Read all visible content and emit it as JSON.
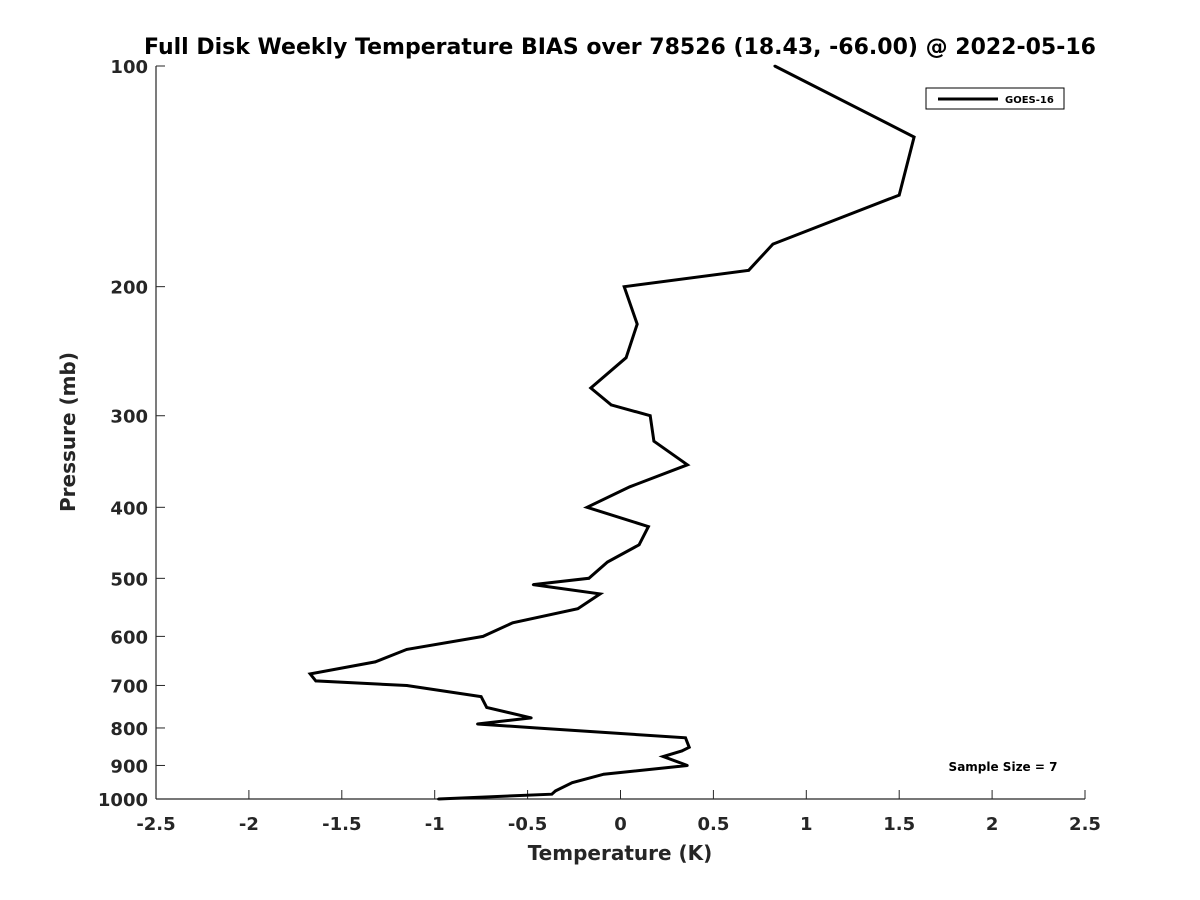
{
  "chart_data": {
    "type": "line",
    "title": "Full Disk Weekly Temperature BIAS over 78526 (18.43, -66.00) @ 2022-05-16",
    "xlabel": "Temperature (K)",
    "ylabel": "Pressure (mb)",
    "xlim": [
      -2.5,
      2.5
    ],
    "ylim": [
      100,
      1000
    ],
    "y_scale": "log",
    "y_reversed": true,
    "x_ticks": [
      -2.5,
      -2,
      -1.5,
      -1,
      -0.5,
      0,
      0.5,
      1,
      1.5,
      2,
      2.5
    ],
    "x_tick_labels": [
      "-2.5",
      "-2",
      "-1.5",
      "-1",
      "-0.5",
      "0",
      "0.5",
      "1",
      "1.5",
      "2",
      "2.5"
    ],
    "y_ticks": [
      100,
      200,
      300,
      400,
      500,
      600,
      700,
      800,
      900,
      1000
    ],
    "y_tick_labels": [
      "100",
      "200",
      "300",
      "400",
      "500",
      "600",
      "700",
      "800",
      "900",
      "1000"
    ],
    "grid": false,
    "legend_position": "top-right",
    "annotation": "Sample Size = 7",
    "series": [
      {
        "name": "GOES-16",
        "color": "#000000",
        "points": [
          {
            "x": 0.83,
            "y": 100
          },
          {
            "x": 1.58,
            "y": 125
          },
          {
            "x": 1.5,
            "y": 150
          },
          {
            "x": 0.82,
            "y": 175
          },
          {
            "x": 0.69,
            "y": 190
          },
          {
            "x": 0.02,
            "y": 200
          },
          {
            "x": 0.09,
            "y": 225
          },
          {
            "x": 0.03,
            "y": 250
          },
          {
            "x": -0.16,
            "y": 275
          },
          {
            "x": -0.05,
            "y": 290
          },
          {
            "x": 0.16,
            "y": 300
          },
          {
            "x": 0.18,
            "y": 325
          },
          {
            "x": 0.36,
            "y": 350
          },
          {
            "x": 0.05,
            "y": 375
          },
          {
            "x": -0.18,
            "y": 400
          },
          {
            "x": 0.15,
            "y": 425
          },
          {
            "x": 0.1,
            "y": 450
          },
          {
            "x": -0.07,
            "y": 475
          },
          {
            "x": -0.17,
            "y": 500
          },
          {
            "x": -0.47,
            "y": 510
          },
          {
            "x": -0.11,
            "y": 525
          },
          {
            "x": -0.23,
            "y": 550
          },
          {
            "x": -0.58,
            "y": 575
          },
          {
            "x": -0.74,
            "y": 600
          },
          {
            "x": -1.15,
            "y": 625
          },
          {
            "x": -1.32,
            "y": 650
          },
          {
            "x": -1.67,
            "y": 675
          },
          {
            "x": -1.64,
            "y": 690
          },
          {
            "x": -1.15,
            "y": 700
          },
          {
            "x": -0.75,
            "y": 725
          },
          {
            "x": -0.72,
            "y": 750
          },
          {
            "x": -0.48,
            "y": 775
          },
          {
            "x": -0.77,
            "y": 790
          },
          {
            "x": -0.45,
            "y": 800
          },
          {
            "x": 0.35,
            "y": 825
          },
          {
            "x": 0.37,
            "y": 850
          },
          {
            "x": 0.33,
            "y": 860
          },
          {
            "x": 0.23,
            "y": 875
          },
          {
            "x": 0.36,
            "y": 900
          },
          {
            "x": -0.09,
            "y": 925
          },
          {
            "x": -0.26,
            "y": 950
          },
          {
            "x": -0.35,
            "y": 975
          },
          {
            "x": -0.37,
            "y": 985
          },
          {
            "x": -0.98,
            "y": 1000
          }
        ]
      }
    ]
  }
}
